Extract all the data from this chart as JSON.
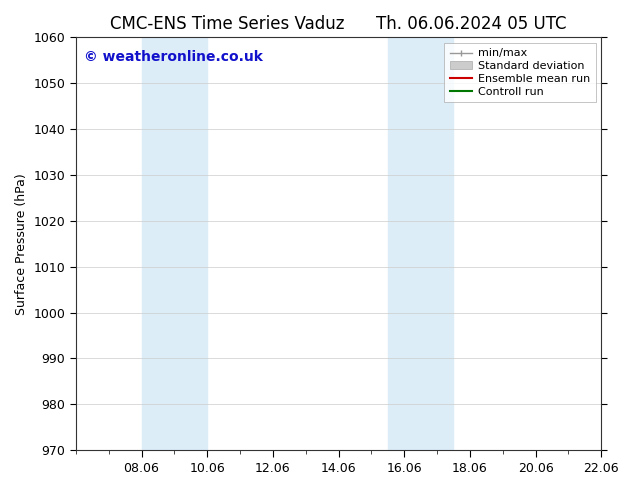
{
  "title_left": "CMC-ENS Time Series Vaduz",
  "title_right": "Th. 06.06.2024 05 UTC",
  "ylabel": "Surface Pressure (hPa)",
  "ylim": [
    970,
    1060
  ],
  "yticks": [
    970,
    980,
    990,
    1000,
    1010,
    1020,
    1030,
    1040,
    1050,
    1060
  ],
  "xlim_min": 0,
  "xlim_max": 16,
  "xtick_labels": [
    "08.06",
    "10.06",
    "12.06",
    "14.06",
    "16.06",
    "18.06",
    "20.06",
    "22.06"
  ],
  "xtick_positions": [
    2,
    4,
    6,
    8,
    10,
    12,
    14,
    16
  ],
  "shaded_bands": [
    {
      "x_start": 2,
      "x_end": 4,
      "color": "#ddedf8"
    },
    {
      "x_start": 9.5,
      "x_end": 11.5,
      "color": "#ddedf8"
    }
  ],
  "watermark_text": "© weatheronline.co.uk",
  "watermark_color": "#1111cc",
  "legend_items": [
    {
      "label": "min/max",
      "color": "#999999",
      "type": "minmax"
    },
    {
      "label": "Standard deviation",
      "color": "#cccccc",
      "type": "band"
    },
    {
      "label": "Ensemble mean run",
      "color": "#cc0000",
      "type": "line"
    },
    {
      "label": "Controll run",
      "color": "#007700",
      "type": "line"
    }
  ],
  "background_color": "#ffffff",
  "plot_bg_color": "#ffffff",
  "grid_color": "#cccccc",
  "title_fontsize": 12,
  "axis_label_fontsize": 9,
  "tick_fontsize": 9,
  "watermark_fontsize": 10,
  "legend_fontsize": 8
}
